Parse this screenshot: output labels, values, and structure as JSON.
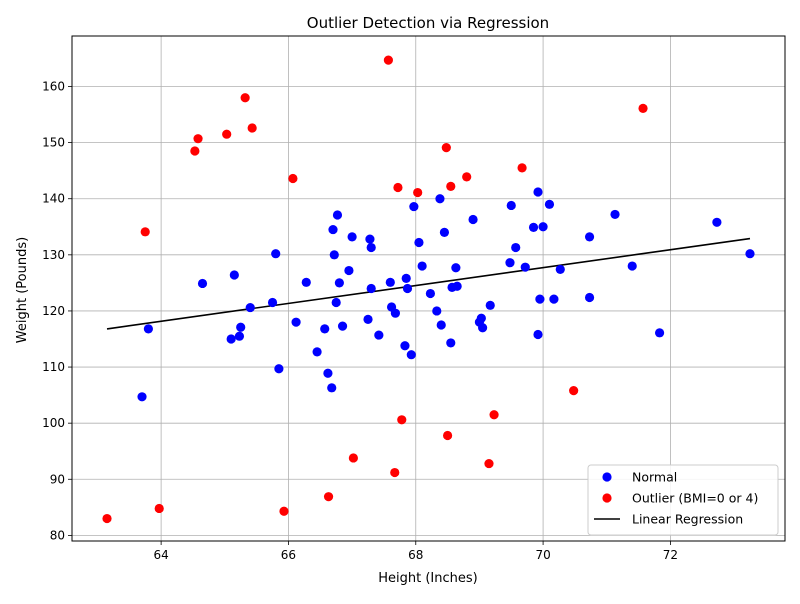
{
  "chart_data": {
    "type": "scatter",
    "title": "Outlier Detection via Regression",
    "xlabel": "Height (Inches)",
    "ylabel": "Weight (Pounds)",
    "xlim": [
      62.6,
      73.8
    ],
    "ylim": [
      79,
      169
    ],
    "xticks": [
      64,
      66,
      68,
      70,
      72
    ],
    "yticks": [
      80,
      90,
      100,
      110,
      120,
      130,
      140,
      150,
      160
    ],
    "grid": true,
    "legend_position": "lower-right",
    "series": [
      {
        "name": "Normal",
        "color": "#0000ff",
        "points": [
          [
            63.7,
            104.7
          ],
          [
            63.8,
            116.8
          ],
          [
            64.65,
            124.9
          ],
          [
            65.1,
            115.0
          ],
          [
            65.15,
            126.4
          ],
          [
            65.23,
            115.5
          ],
          [
            65.25,
            117.1
          ],
          [
            65.4,
            120.6
          ],
          [
            65.75,
            121.5
          ],
          [
            65.8,
            130.2
          ],
          [
            65.85,
            109.7
          ],
          [
            66.12,
            118.0
          ],
          [
            66.28,
            125.1
          ],
          [
            66.45,
            112.7
          ],
          [
            66.57,
            116.8
          ],
          [
            66.62,
            108.9
          ],
          [
            66.68,
            106.3
          ],
          [
            66.7,
            134.5
          ],
          [
            66.72,
            130.0
          ],
          [
            66.75,
            121.5
          ],
          [
            66.77,
            137.1
          ],
          [
            66.8,
            125.0
          ],
          [
            66.85,
            117.3
          ],
          [
            66.95,
            127.2
          ],
          [
            67.0,
            133.2
          ],
          [
            67.25,
            118.5
          ],
          [
            67.28,
            132.8
          ],
          [
            67.3,
            131.3
          ],
          [
            67.3,
            124.0
          ],
          [
            67.42,
            115.7
          ],
          [
            67.6,
            125.1
          ],
          [
            67.62,
            120.7
          ],
          [
            67.68,
            119.6
          ],
          [
            67.83,
            113.8
          ],
          [
            67.85,
            125.8
          ],
          [
            67.87,
            124.0
          ],
          [
            67.93,
            112.2
          ],
          [
            67.97,
            138.6
          ],
          [
            68.05,
            132.2
          ],
          [
            68.1,
            128.0
          ],
          [
            68.23,
            123.1
          ],
          [
            68.33,
            120.0
          ],
          [
            68.38,
            140.0
          ],
          [
            68.4,
            117.5
          ],
          [
            68.45,
            134.0
          ],
          [
            68.55,
            114.3
          ],
          [
            68.57,
            124.2
          ],
          [
            68.63,
            127.7
          ],
          [
            68.65,
            124.4
          ],
          [
            68.9,
            136.3
          ],
          [
            69.0,
            118.0
          ],
          [
            69.03,
            118.7
          ],
          [
            69.05,
            117.0
          ],
          [
            69.17,
            121.0
          ],
          [
            69.48,
            128.6
          ],
          [
            69.5,
            138.8
          ],
          [
            69.57,
            131.3
          ],
          [
            69.72,
            127.8
          ],
          [
            69.85,
            134.9
          ],
          [
            69.92,
            141.2
          ],
          [
            69.92,
            115.8
          ],
          [
            69.95,
            122.1
          ],
          [
            70.0,
            135.0
          ],
          [
            70.1,
            139.0
          ],
          [
            70.17,
            122.1
          ],
          [
            70.27,
            127.4
          ],
          [
            70.73,
            122.4
          ],
          [
            70.73,
            133.2
          ],
          [
            71.13,
            137.2
          ],
          [
            71.4,
            128.0
          ],
          [
            71.83,
            116.1
          ],
          [
            72.73,
            135.8
          ],
          [
            73.25,
            130.2
          ]
        ]
      },
      {
        "name": "Outlier (BMI=0 or 4)",
        "color": "#ff0000",
        "points": [
          [
            63.15,
            83.0
          ],
          [
            63.75,
            134.1
          ],
          [
            63.97,
            84.8
          ],
          [
            64.53,
            148.5
          ],
          [
            64.58,
            150.7
          ],
          [
            65.03,
            151.5
          ],
          [
            65.32,
            158.0
          ],
          [
            65.43,
            152.6
          ],
          [
            65.93,
            84.3
          ],
          [
            66.07,
            143.6
          ],
          [
            66.63,
            86.9
          ],
          [
            67.02,
            93.8
          ],
          [
            67.57,
            164.7
          ],
          [
            67.67,
            91.2
          ],
          [
            67.72,
            142.0
          ],
          [
            67.78,
            100.6
          ],
          [
            68.03,
            141.1
          ],
          [
            68.48,
            149.1
          ],
          [
            68.5,
            97.8
          ],
          [
            68.55,
            142.2
          ],
          [
            68.8,
            143.9
          ],
          [
            69.15,
            92.8
          ],
          [
            69.23,
            101.5
          ],
          [
            69.67,
            145.5
          ],
          [
            70.48,
            105.8
          ],
          [
            71.57,
            156.1
          ]
        ]
      },
      {
        "name": "Linear Regression",
        "color": "#000000",
        "line": [
          [
            63.15,
            116.8
          ],
          [
            73.25,
            132.9
          ]
        ]
      }
    ]
  }
}
